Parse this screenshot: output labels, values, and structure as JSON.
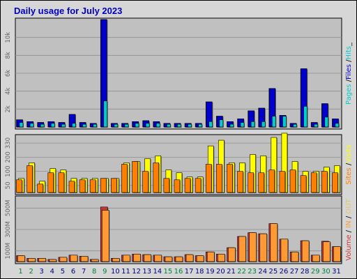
{
  "title": "Daily usage for July 2023",
  "colors": {
    "frame": "#d6d6d6",
    "plot_bg": "#c0c0c0",
    "hits": "#00cccc",
    "files": "#0000cc",
    "pages": "#00cccc",
    "sites": "#ff8000",
    "visits": "#ffff00",
    "volume": "#cc3333",
    "in": "#ff9933",
    "out": "#e6c866",
    "title": "#0000c0",
    "weekday": "#000080",
    "weekend": "#008040"
  },
  "chart_data": [
    {
      "type": "bar",
      "panel": "hits",
      "side_labels": [
        {
          "text": "Pages",
          "series": "pages"
        },
        {
          "text": " /",
          "series": "sep"
        },
        {
          "text": "Files",
          "series": "files"
        },
        {
          "text": " /",
          "series": "sep"
        },
        {
          "text": "Hits",
          "series": "hits"
        },
        {
          "text": "_",
          "series": "sep"
        }
      ],
      "yticks": [
        "2k",
        "4k",
        "6k",
        "8k",
        "10k"
      ],
      "ytick_values": [
        2000,
        4000,
        6000,
        8000,
        10000
      ],
      "ylim": [
        0,
        12000
      ],
      "grid": true,
      "series": [
        {
          "name": "Hits",
          "key": "hits",
          "values": [
            800,
            600,
            500,
            600,
            500,
            1400,
            500,
            400,
            12000,
            400,
            400,
            600,
            700,
            600,
            400,
            400,
            400,
            400,
            2800,
            1200,
            600,
            900,
            1800,
            2100,
            4300,
            1300,
            400,
            6500,
            500,
            2600,
            900
          ]
        },
        {
          "name": "Files",
          "key": "files",
          "values": [
            800,
            600,
            500,
            600,
            500,
            1400,
            500,
            400,
            12000,
            400,
            400,
            600,
            700,
            600,
            400,
            400,
            400,
            400,
            2800,
            1200,
            600,
            900,
            1800,
            2100,
            4300,
            1300,
            400,
            6500,
            500,
            2600,
            900
          ]
        },
        {
          "name": "Pages",
          "key": "pages",
          "values": [
            500,
            400,
            300,
            400,
            300,
            400,
            300,
            300,
            2900,
            300,
            300,
            400,
            400,
            400,
            300,
            300,
            300,
            300,
            600,
            800,
            300,
            500,
            600,
            600,
            1200,
            1200,
            300,
            2300,
            300,
            1100,
            400
          ]
        }
      ]
    },
    {
      "type": "bar",
      "panel": "visits",
      "side_labels": [
        {
          "text": "Sites",
          "series": "sites"
        },
        {
          "text": " /",
          "series": "sep"
        },
        {
          "text": "Visits",
          "series": "visits"
        }
      ],
      "yticks": [
        "50",
        "100",
        "200",
        "330"
      ],
      "ytick_values": [
        50,
        150,
        250,
        350
      ],
      "ylim": [
        0,
        400
      ],
      "grid": true,
      "series": [
        {
          "name": "Visits",
          "key": "visits",
          "values": [
            100,
            210,
            80,
            170,
            160,
            100,
            100,
            100,
            100,
            100,
            210,
            220,
            240,
            260,
            160,
            140,
            110,
            110,
            330,
            370,
            210,
            210,
            270,
            260,
            390,
            420,
            220,
            150,
            150,
            180,
            190
          ]
        },
        {
          "name": "Sites",
          "key": "sites",
          "values": [
            90,
            190,
            60,
            140,
            140,
            80,
            90,
            90,
            100,
            100,
            200,
            220,
            150,
            210,
            100,
            90,
            100,
            100,
            200,
            200,
            200,
            150,
            140,
            140,
            160,
            150,
            160,
            120,
            140,
            150,
            140
          ]
        }
      ]
    },
    {
      "type": "bar",
      "panel": "volume",
      "side_labels": [
        {
          "text": "Volume",
          "series": "volume"
        },
        {
          "text": " / ",
          "series": "sep"
        },
        {
          "text": "IN",
          "series": "in"
        },
        {
          "text": " / ",
          "series": "sep"
        },
        {
          "text": "OUT",
          "series": "out"
        }
      ],
      "yticks": [
        "100M",
        "300M",
        "500M"
      ],
      "ytick_values": [
        100,
        300,
        500
      ],
      "ylim": [
        0,
        600
      ],
      "grid": true,
      "series": [
        {
          "name": "Volume",
          "key": "volume",
          "values": [
            55,
            30,
            30,
            20,
            40,
            60,
            50,
            20,
            510,
            30,
            60,
            70,
            65,
            60,
            45,
            45,
            65,
            55,
            90,
            70,
            130,
            235,
            270,
            260,
            355,
            210,
            90,
            195,
            60,
            190,
            140
          ]
        },
        {
          "name": "IN",
          "key": "in",
          "values": [
            55,
            30,
            30,
            20,
            40,
            60,
            50,
            20,
            480,
            30,
            60,
            70,
            65,
            60,
            45,
            45,
            65,
            55,
            90,
            70,
            130,
            235,
            270,
            260,
            355,
            210,
            90,
            195,
            60,
            185,
            140
          ]
        }
      ]
    }
  ],
  "days": [
    {
      "label": "1",
      "weekend": true
    },
    {
      "label": "2",
      "weekend": true
    },
    {
      "label": "3",
      "weekend": false
    },
    {
      "label": "4",
      "weekend": false
    },
    {
      "label": "5",
      "weekend": false
    },
    {
      "label": "6",
      "weekend": false
    },
    {
      "label": "7",
      "weekend": false
    },
    {
      "label": "8",
      "weekend": true
    },
    {
      "label": "9",
      "weekend": true
    },
    {
      "label": "10",
      "weekend": false
    },
    {
      "label": "11",
      "weekend": false
    },
    {
      "label": "12",
      "weekend": false
    },
    {
      "label": "13",
      "weekend": false
    },
    {
      "label": "14",
      "weekend": false
    },
    {
      "label": "15",
      "weekend": true
    },
    {
      "label": "16",
      "weekend": true
    },
    {
      "label": "17",
      "weekend": false
    },
    {
      "label": "18",
      "weekend": false
    },
    {
      "label": "19",
      "weekend": false
    },
    {
      "label": "20",
      "weekend": false
    },
    {
      "label": "21",
      "weekend": false
    },
    {
      "label": "22",
      "weekend": true
    },
    {
      "label": "23",
      "weekend": true
    },
    {
      "label": "24",
      "weekend": false
    },
    {
      "label": "25",
      "weekend": false
    },
    {
      "label": "26",
      "weekend": false
    },
    {
      "label": "27",
      "weekend": false
    },
    {
      "label": "28",
      "weekend": false
    },
    {
      "label": "29",
      "weekend": true
    },
    {
      "label": "30",
      "weekend": true
    },
    {
      "label": "31",
      "weekend": false
    }
  ]
}
